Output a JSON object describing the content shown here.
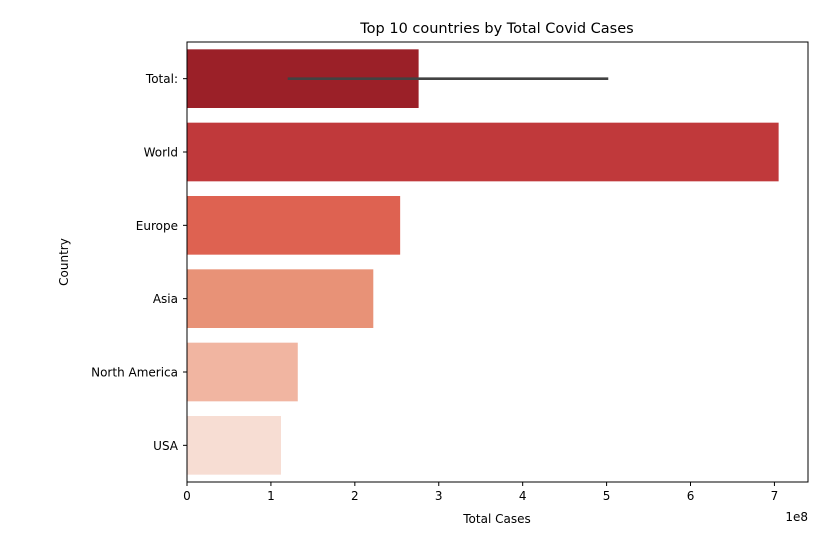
{
  "chart_data": {
    "type": "bar",
    "orientation": "horizontal",
    "title": "Top 10 countries by Total Covid Cases",
    "xlabel": "Total Cases",
    "ylabel": "Country",
    "x_scale_label": "1e8",
    "xlim": [
      0,
      7.4
    ],
    "x_ticks": [
      "0",
      "1",
      "2",
      "3",
      "4",
      "5",
      "6",
      "7"
    ],
    "categories": [
      "Total:",
      "World",
      "Europe",
      "Asia",
      "North America",
      "USA"
    ],
    "values": [
      2.76,
      7.05,
      2.54,
      2.22,
      1.32,
      1.12
    ],
    "error_bars": [
      {
        "category": "Total:",
        "low": 1.2,
        "high": 5.02
      }
    ],
    "colors": [
      "#9b2028",
      "#c0393b",
      "#de6251",
      "#e89277",
      "#f1b5a1",
      "#f7ddd3"
    ],
    "error_bar_color": "#424242",
    "grid": false,
    "legend": "none"
  }
}
